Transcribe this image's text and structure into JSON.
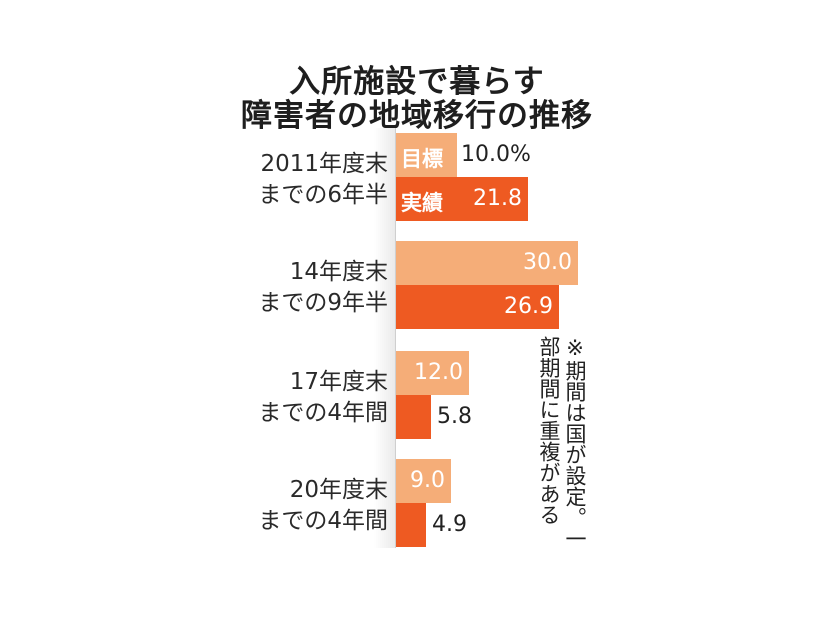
{
  "title": [
    "入所施設で暮らす",
    "障害者の地域移行の推移"
  ],
  "legend": {
    "target": "目標",
    "actual": "実績"
  },
  "note": "※期間は国が設定。一部期間に重複がある",
  "colors": {
    "target": "#f5ad78",
    "actual": "#ee5a22"
  },
  "chart_data": {
    "type": "bar",
    "orientation": "horizontal",
    "title": "入所施設で暮らす障害者の地域移行の推移",
    "categories": [
      [
        "2011年度末",
        "までの6年半"
      ],
      [
        "14年度末",
        "までの9年半"
      ],
      [
        "17年度末",
        "までの4年間"
      ],
      [
        "20年度末",
        "までの4年間"
      ]
    ],
    "series": [
      {
        "name": "目標",
        "values": [
          10.0,
          30.0,
          12.0,
          9.0
        ],
        "labels": [
          "10.0%",
          "30.0",
          "12.0",
          "9.0"
        ]
      },
      {
        "name": "実績",
        "values": [
          21.8,
          26.9,
          5.8,
          4.9
        ],
        "labels": [
          "21.8",
          "26.9",
          "5.8",
          "4.9"
        ]
      }
    ],
    "unit": "%",
    "xlim": [
      0,
      30
    ]
  }
}
